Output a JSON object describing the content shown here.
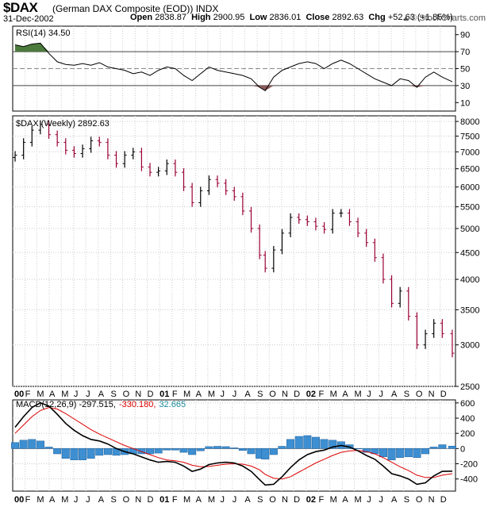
{
  "header": {
    "symbol": "$DAX",
    "name": "(German DAX Composite (EOD))",
    "exchange": "INDX",
    "date": "31-Dec-2002",
    "open_label": "Open",
    "open": "2838.87",
    "high_label": "High",
    "high": "2900.95",
    "low_label": "Low",
    "low": "2836.01",
    "close_label": "Close",
    "close": "2892.63",
    "chg_label": "Chg",
    "chg": "+52.63 (+1.85%)",
    "watermark": "© StockCharts.com",
    "watermark_arrow": "▲"
  },
  "colors": {
    "up": "#000000",
    "down": "#990033",
    "rsi": "#000000",
    "rsi_fill": "#4b7a3c",
    "rsi_fill_low": "#8b5a5a",
    "macd": "#000000",
    "signal": "#dd0000",
    "hist": "#3d8fd1",
    "hist_edge": "#1f5f99",
    "grid": "#cccccc",
    "axis": "#000000"
  },
  "chart_data": [
    {
      "type": "line",
      "name": "rsi",
      "legend": [
        "RSI(14) 34.50"
      ],
      "ylim": [
        0,
        100
      ],
      "yticks": [
        10,
        30,
        50,
        70,
        90
      ],
      "levels": [
        30,
        50,
        70
      ],
      "x": [
        "2000-01-07",
        "2000-01-28",
        "2000-02-18",
        "2000-03-10",
        "2000-03-31",
        "2000-04-21",
        "2000-05-12",
        "2000-06-02",
        "2000-06-23",
        "2000-07-14",
        "2000-08-04",
        "2000-08-25",
        "2000-09-15",
        "2000-10-06",
        "2000-10-27",
        "2000-11-17",
        "2000-12-08",
        "2000-12-29",
        "2001-01-19",
        "2001-02-09",
        "2001-03-02",
        "2001-03-23",
        "2001-04-13",
        "2001-05-04",
        "2001-05-25",
        "2001-06-15",
        "2001-07-06",
        "2001-07-27",
        "2001-08-17",
        "2001-09-07",
        "2001-09-21",
        "2001-10-12",
        "2001-11-02",
        "2001-11-23",
        "2001-12-14",
        "2002-01-04",
        "2002-01-25",
        "2002-02-15",
        "2002-03-08",
        "2002-03-29",
        "2002-04-19",
        "2002-05-10",
        "2002-05-31",
        "2002-06-21",
        "2002-07-12",
        "2002-08-02",
        "2002-08-23",
        "2002-09-13",
        "2002-10-04",
        "2002-10-25",
        "2002-11-15",
        "2002-12-06",
        "2002-12-31"
      ],
      "values": [
        78,
        76,
        79,
        80,
        68,
        58,
        55,
        54,
        56,
        54,
        57,
        52,
        50,
        48,
        44,
        46,
        42,
        48,
        52,
        50,
        42,
        36,
        44,
        52,
        48,
        46,
        44,
        42,
        38,
        28,
        24,
        40,
        48,
        52,
        56,
        58,
        56,
        50,
        56,
        60,
        56,
        50,
        44,
        38,
        34,
        30,
        38,
        36,
        28,
        40,
        46,
        40,
        34.5
      ]
    },
    {
      "type": "bar",
      "name": "price",
      "legend": [
        "$DAX (Weekly) 2892.63"
      ],
      "scale": "log",
      "ylim": [
        2500,
        8200
      ],
      "yticks": [
        2500,
        3000,
        3500,
        4000,
        4500,
        5000,
        5500,
        6000,
        6500,
        7000,
        7500,
        8000
      ],
      "x": [
        "2000-01-07",
        "2000-01-28",
        "2000-02-18",
        "2000-03-10",
        "2000-03-31",
        "2000-04-21",
        "2000-05-12",
        "2000-06-02",
        "2000-06-23",
        "2000-07-14",
        "2000-08-04",
        "2000-08-25",
        "2000-09-15",
        "2000-10-06",
        "2000-10-27",
        "2000-11-17",
        "2000-12-08",
        "2000-12-29",
        "2001-01-19",
        "2001-02-09",
        "2001-03-02",
        "2001-03-23",
        "2001-04-13",
        "2001-05-04",
        "2001-05-25",
        "2001-06-15",
        "2001-07-06",
        "2001-07-27",
        "2001-08-17",
        "2001-09-07",
        "2001-09-21",
        "2001-10-12",
        "2001-11-02",
        "2001-11-23",
        "2001-12-14",
        "2002-01-04",
        "2002-01-25",
        "2002-02-15",
        "2002-03-08",
        "2002-03-29",
        "2002-04-19",
        "2002-05-10",
        "2002-05-31",
        "2002-06-21",
        "2002-07-12",
        "2002-08-02",
        "2002-08-23",
        "2002-09-13",
        "2002-10-04",
        "2002-10-25",
        "2002-11-15",
        "2002-12-06",
        "2002-12-31"
      ],
      "close": [
        6900,
        7300,
        7700,
        7900,
        7550,
        7300,
        7050,
        6950,
        7100,
        7350,
        7300,
        6900,
        6650,
        6900,
        7000,
        6550,
        6400,
        6440,
        6650,
        6400,
        6000,
        5600,
        5900,
        6200,
        6100,
        5900,
        5750,
        5400,
        5000,
        4450,
        4200,
        4550,
        4900,
        5250,
        5200,
        5150,
        5050,
        4980,
        5350,
        5350,
        5150,
        4900,
        4700,
        4400,
        4000,
        3600,
        3800,
        3400,
        3000,
        3150,
        3300,
        3150,
        2892.63
      ]
    },
    {
      "type": "line",
      "name": "macd",
      "legend": [
        "MACD(12,26,9) -297.515,",
        "-330.180,",
        "32.665"
      ],
      "ylim": [
        -560,
        640
      ],
      "yticks": [
        -400,
        -200,
        0,
        200,
        400,
        600
      ],
      "x": [
        "2000-01-07",
        "2000-01-28",
        "2000-02-18",
        "2000-03-10",
        "2000-03-31",
        "2000-04-21",
        "2000-05-12",
        "2000-06-02",
        "2000-06-23",
        "2000-07-14",
        "2000-08-04",
        "2000-08-25",
        "2000-09-15",
        "2000-10-06",
        "2000-10-27",
        "2000-11-17",
        "2000-12-08",
        "2000-12-29",
        "2001-01-19",
        "2001-02-09",
        "2001-03-02",
        "2001-03-23",
        "2001-04-13",
        "2001-05-04",
        "2001-05-25",
        "2001-06-15",
        "2001-07-06",
        "2001-07-27",
        "2001-08-17",
        "2001-09-07",
        "2001-09-21",
        "2001-10-12",
        "2001-11-02",
        "2001-11-23",
        "2001-12-14",
        "2002-01-04",
        "2002-01-25",
        "2002-02-15",
        "2002-03-08",
        "2002-03-29",
        "2002-04-19",
        "2002-05-10",
        "2002-05-31",
        "2002-06-21",
        "2002-07-12",
        "2002-08-02",
        "2002-08-23",
        "2002-09-13",
        "2002-10-04",
        "2002-10-25",
        "2002-11-15",
        "2002-12-06",
        "2002-12-31"
      ],
      "series": [
        {
          "name": "MACD",
          "values": [
            280,
            420,
            540,
            600,
            560,
            450,
            330,
            240,
            170,
            120,
            100,
            60,
            0,
            -40,
            -70,
            -110,
            -150,
            -180,
            -170,
            -180,
            -230,
            -300,
            -270,
            -210,
            -190,
            -180,
            -190,
            -230,
            -300,
            -410,
            -480,
            -470,
            -370,
            -250,
            -150,
            -80,
            -40,
            -20,
            20,
            40,
            20,
            -30,
            -90,
            -140,
            -230,
            -330,
            -360,
            -400,
            -470,
            -450,
            -360,
            -300,
            -297.515
          ]
        },
        {
          "name": "Signal",
          "values": [
            200,
            310,
            420,
            500,
            540,
            520,
            460,
            390,
            320,
            250,
            190,
            140,
            90,
            40,
            0,
            -40,
            -80,
            -120,
            -150,
            -160,
            -180,
            -220,
            -240,
            -235,
            -220,
            -205,
            -200,
            -205,
            -230,
            -280,
            -340,
            -390,
            -400,
            -370,
            -310,
            -250,
            -190,
            -140,
            -90,
            -50,
            -30,
            -25,
            -40,
            -70,
            -120,
            -180,
            -240,
            -290,
            -350,
            -380,
            -380,
            -350,
            -330.18
          ]
        },
        {
          "name": "Histogram",
          "values": [
            80,
            110,
            120,
            100,
            20,
            -70,
            -130,
            -150,
            -150,
            -130,
            -90,
            -80,
            -90,
            -80,
            -70,
            -70,
            -70,
            -60,
            -20,
            -20,
            -50,
            -80,
            -30,
            25,
            30,
            25,
            10,
            -25,
            -70,
            -130,
            -140,
            -80,
            30,
            120,
            160,
            170,
            150,
            120,
            110,
            90,
            50,
            -5,
            -50,
            -70,
            -110,
            -150,
            -120,
            -110,
            -120,
            -70,
            20,
            50,
            32.665
          ]
        }
      ]
    }
  ],
  "xaxis": {
    "labels": [
      "00",
      "F",
      "M",
      "A",
      "M",
      "J",
      "J",
      "A",
      "S",
      "O",
      "N",
      "D",
      "01",
      "F",
      "M",
      "A",
      "M",
      "J",
      "J",
      "A",
      "S",
      "O",
      "N",
      "D",
      "02",
      "F",
      "M",
      "A",
      "M",
      "J",
      "J",
      "A",
      "S",
      "O",
      "N",
      "D"
    ],
    "bold": [
      "00",
      "01",
      "02"
    ]
  }
}
